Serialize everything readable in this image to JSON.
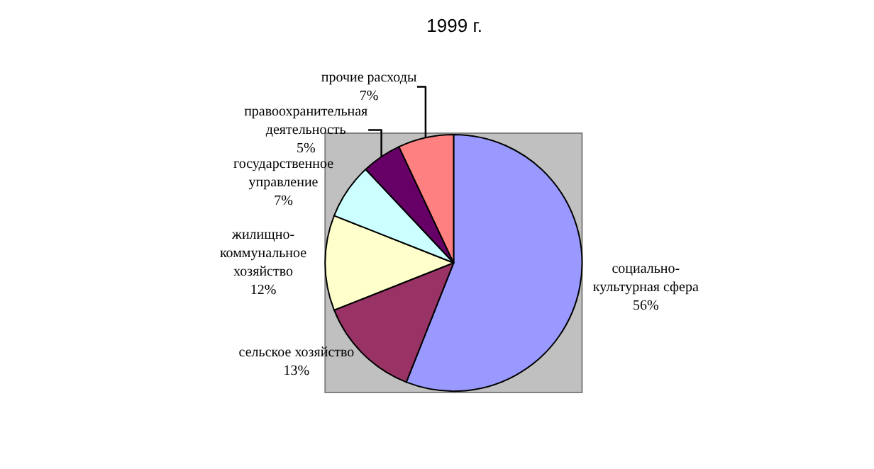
{
  "chart_data": {
    "type": "pie",
    "title": "1999 г.",
    "categories": [
      "социально-культурная сфера",
      "сельское хозяйство",
      "жилищно-коммунальное хозяйство",
      "государственное управление",
      "правоохранительная деятельность",
      "прочие расходы"
    ],
    "values": [
      56,
      13,
      12,
      7,
      5,
      7
    ],
    "value_labels": [
      "56%",
      "13%",
      "12%",
      "7%",
      "5%",
      "7%"
    ],
    "colors": [
      "#9999ff",
      "#993366",
      "#ffffcc",
      "#ccffff",
      "#660066",
      "#ff8080"
    ],
    "legend": false
  }
}
